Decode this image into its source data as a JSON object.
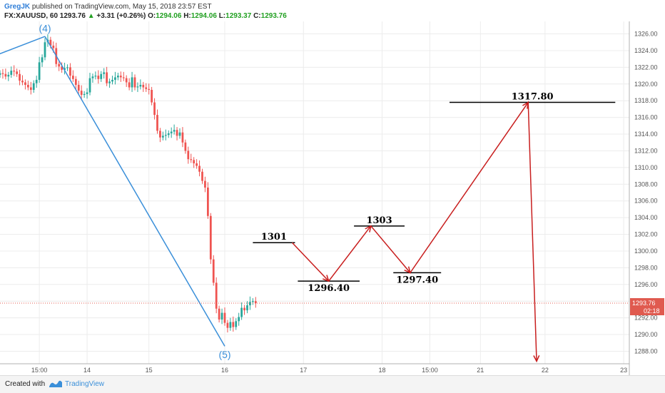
{
  "header": {
    "author": "GregJK",
    "published": "published on TradingView.com, May 15, 2018 23:57 EST",
    "symbol": "FX:XAUUSD, 60",
    "last": "1293.76",
    "arrow": "▲",
    "change": "+3.31 (+0.26%)",
    "o_label": "O:",
    "o": "1294.06",
    "h_label": "H:",
    "h": "1294.06",
    "l_label": "L:",
    "l": "1293.37",
    "c_label": "C:",
    "c": "1293.76"
  },
  "footer": {
    "created": "Created with",
    "brand": "TradingView"
  },
  "colors": {
    "up": "#26a69a",
    "down": "#ef5350",
    "wave": "#3a8fd9",
    "projection": "#c81e1e",
    "level": "#000000",
    "grid": "#ececec",
    "price_line": "#e05a4f",
    "price_tag": "#e05a4f"
  },
  "chart_data": {
    "type": "candlestick",
    "y_axis": {
      "min": 1286.5,
      "max": 1327.5,
      "ticks": [
        "1326.00",
        "1324.00",
        "1322.00",
        "1320.00",
        "1318.00",
        "1316.00",
        "1314.00",
        "1312.00",
        "1310.00",
        "1308.00",
        "1306.00",
        "1304.00",
        "1302.00",
        "1300.00",
        "1298.00",
        "1296.00",
        "1294.00",
        "1292.00",
        "1290.00",
        "1288.00"
      ],
      "side": "right"
    },
    "x_axis": {
      "bar_min": 0,
      "bar_max": 224,
      "ticks": [
        {
          "label": "15:00",
          "bar": 14
        },
        {
          "label": "14",
          "bar": 31
        },
        {
          "label": "15",
          "bar": 53
        },
        {
          "label": "16",
          "bar": 80
        },
        {
          "label": "17",
          "bar": 108
        },
        {
          "label": "18",
          "bar": 136
        },
        {
          "label": "15:00",
          "bar": 153
        },
        {
          "label": "21",
          "bar": 171
        },
        {
          "label": "22",
          "bar": 194
        },
        {
          "label": "23",
          "bar": 222
        }
      ]
    },
    "grid": true,
    "current_price": {
      "value": 1293.76,
      "label": "1293.76",
      "countdown": "02:18"
    },
    "ohlc_close": [
      1321.3,
      1321.2,
      1320.9,
      1321.1,
      1321.6,
      1321.5,
      1321.2,
      1320.4,
      1320.2,
      1319.9,
      1319.6,
      1319.3,
      1320.1,
      1320.5,
      1322.6,
      1323.2,
      1325.0,
      1325.3,
      1324.6,
      1324.3,
      1322.4,
      1322.1,
      1321.7,
      1321.9,
      1322.0,
      1321.0,
      1320.6,
      1319.9,
      1319.2,
      1318.7,
      1318.8,
      1319.0,
      1320.7,
      1320.9,
      1321.0,
      1320.6,
      1321.2,
      1321.4,
      1320.1,
      1320.3,
      1320.5,
      1320.8,
      1321.0,
      1320.8,
      1320.7,
      1320.2,
      1319.6,
      1320.8,
      1319.6,
      1319.7,
      1319.9,
      1319.6,
      1319.4,
      1319.3,
      1317.8,
      1316.3,
      1314.4,
      1313.6,
      1313.8,
      1313.9,
      1314.1,
      1314.3,
      1314.5,
      1313.8,
      1314.2,
      1313.0,
      1312.0,
      1311.0,
      1310.9,
      1310.5,
      1310.2,
      1309.5,
      1308.4,
      1307.6,
      1304.2,
      1299.0,
      1296.2,
      1293.1,
      1291.8,
      1292.6,
      1291.4,
      1290.8,
      1291.5,
      1290.9,
      1291.6,
      1292.1,
      1293.2,
      1292.9,
      1293.5,
      1293.9,
      1294.0,
      1293.76
    ],
    "wave_labels": [
      {
        "label": "(4)",
        "x_bar": 16,
        "price": 1325.9
      },
      {
        "label": "(5)",
        "x_bar": 80,
        "price": 1288.4
      }
    ],
    "wave_lines": [
      {
        "x1": -1,
        "y1": 1323.5,
        "x2": 16,
        "y2": 1325.7
      },
      {
        "x1": 16,
        "y1": 1325.7,
        "x2": 80,
        "y2": 1288.6
      }
    ],
    "projection_path": [
      {
        "bar": 104,
        "price": 1301.0
      },
      {
        "bar": 117,
        "price": 1296.4
      },
      {
        "bar": 132,
        "price": 1303.0
      },
      {
        "bar": 146,
        "price": 1297.4
      },
      {
        "bar": 188,
        "price": 1317.8
      },
      {
        "bar": 191,
        "price": 1286.8
      }
    ],
    "levels": [
      {
        "label": "1301",
        "value": 1301.0,
        "bar_start": 90,
        "bar_end": 105,
        "label_pos": "above"
      },
      {
        "label": "1296.40",
        "value": 1296.4,
        "bar_start": 106,
        "bar_end": 128,
        "label_pos": "below"
      },
      {
        "label": "1303",
        "value": 1303.0,
        "bar_start": 126,
        "bar_end": 144,
        "label_pos": "above"
      },
      {
        "label": "1297.40",
        "value": 1297.4,
        "bar_start": 140,
        "bar_end": 157,
        "label_pos": "below"
      },
      {
        "label": "1317.80",
        "value": 1317.8,
        "bar_start": 160,
        "bar_end": 219,
        "label_pos": "above"
      }
    ]
  }
}
